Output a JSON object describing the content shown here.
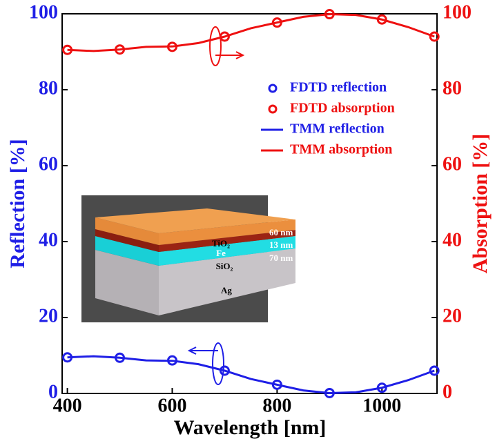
{
  "chart_data": {
    "type": "line",
    "xlabel": "Wavelength [nm]",
    "ylabel": "Reflection [%]",
    "y2label": "Absorption [%]",
    "xlim": [
      390,
      1105
    ],
    "xticks": [
      400,
      600,
      800,
      1000
    ],
    "ylim": [
      0,
      100
    ],
    "yticks": [
      0,
      20,
      40,
      60,
      80,
      100
    ],
    "y2lim": [
      0,
      100
    ],
    "y2ticks": [
      0,
      20,
      40,
      60,
      80,
      100
    ],
    "ycolor": "#1f1fe6",
    "y2color": "#ee1111",
    "series": [
      {
        "name": "FDTD reflection",
        "color": "#1f1fe6",
        "style": "marker",
        "axis": "y",
        "x": [
          400,
          500,
          600,
          700,
          800,
          900,
          1000,
          1100
        ],
        "values": [
          9.5,
          9.4,
          8.7,
          6.0,
          2.3,
          0.1,
          1.5,
          6.0
        ]
      },
      {
        "name": "FDTD absorption",
        "color": "#ee1111",
        "style": "marker",
        "axis": "y2",
        "x": [
          400,
          500,
          600,
          700,
          800,
          900,
          1000,
          1100
        ],
        "values": [
          90.5,
          90.6,
          91.3,
          94.0,
          97.7,
          99.9,
          98.5,
          94.0
        ]
      },
      {
        "name": "TMM reflection",
        "color": "#1f1fe6",
        "style": "line",
        "axis": "y",
        "x": [
          400,
          450,
          500,
          550,
          600,
          650,
          700,
          750,
          800,
          850,
          900,
          950,
          1000,
          1050,
          1100
        ],
        "values": [
          9.5,
          9.8,
          9.4,
          8.7,
          8.6,
          7.7,
          6.0,
          3.8,
          2.3,
          0.8,
          0.1,
          0.3,
          1.5,
          3.5,
          6.0
        ]
      },
      {
        "name": "TMM absorption",
        "color": "#ee1111",
        "style": "line",
        "axis": "y2",
        "x": [
          400,
          450,
          500,
          550,
          600,
          650,
          700,
          750,
          800,
          850,
          900,
          950,
          1000,
          1050,
          1100
        ],
        "values": [
          90.5,
          90.2,
          90.6,
          91.3,
          91.4,
          92.3,
          94.0,
          96.2,
          97.7,
          99.2,
          99.9,
          99.7,
          98.5,
          96.5,
          94.0
        ]
      }
    ],
    "inset": {
      "layers": [
        "TiO₂",
        "Fe",
        "SiO₂",
        "Ag"
      ],
      "thicknesses": [
        "60 nm",
        "13 nm",
        "70 nm"
      ]
    }
  }
}
